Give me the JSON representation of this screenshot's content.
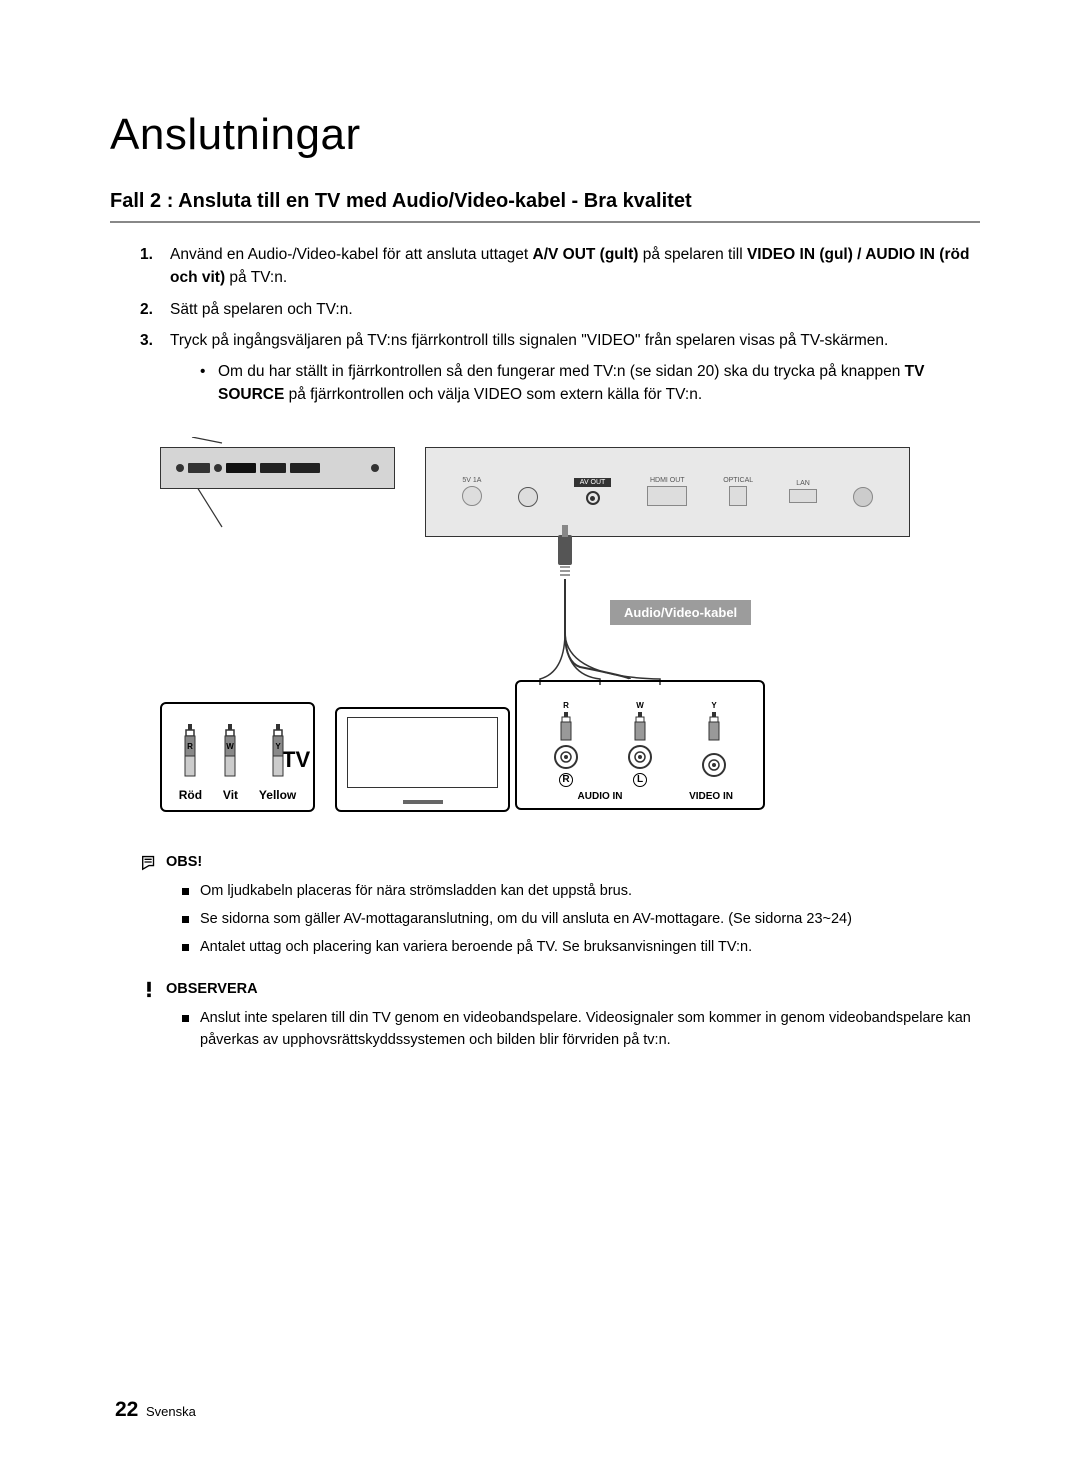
{
  "title": "Anslutningar",
  "subtitle": "Fall 2 : Ansluta till en TV med Audio/Video-kabel - Bra kvalitet",
  "steps": [
    {
      "num": "1.",
      "segments": [
        {
          "t": "Använd en Audio-/Video-kabel för att ansluta uttaget ",
          "b": false
        },
        {
          "t": "A/V OUT (gult)",
          "b": true
        },
        {
          "t": " på spelaren till ",
          "b": false
        },
        {
          "t": "VIDEO IN (gul) / AUDIO IN (röd och vit)",
          "b": true
        },
        {
          "t": " på TV:n.",
          "b": false
        }
      ]
    },
    {
      "num": "2.",
      "segments": [
        {
          "t": "Sätt på spelaren och TV:n.",
          "b": false
        }
      ]
    },
    {
      "num": "3.",
      "segments": [
        {
          "t": "Tryck på ingångsväljaren på TV:ns fjärrkontroll tills signalen \"VIDEO\" från spelaren visas på TV-skärmen.",
          "b": false
        }
      ],
      "sub": [
        {
          "t": "Om du har ställt in fjärrkontrollen så den fungerar med TV:n (se sidan 20) ska du trycka på knappen ",
          "b": false
        },
        {
          "t": "TV SOURCE",
          "b": true
        },
        {
          "t": " på fjärrkontrollen och välja VIDEO som extern källa för TV:n.",
          "b": false
        }
      ]
    }
  ],
  "diagram": {
    "cable_label": "Audio/Video-kabel",
    "tv_label": "TV",
    "legend": [
      {
        "letter": "R",
        "label": "Röd"
      },
      {
        "letter": "W",
        "label": "Vit"
      },
      {
        "letter": "Y",
        "label": "Yellow"
      }
    ],
    "jack_plugs": [
      "R",
      "W",
      "Y"
    ],
    "jack_rl": [
      "R",
      "L"
    ],
    "jack_bottom": {
      "audio": "AUDIO IN",
      "video": "VIDEO IN"
    },
    "large_ports": [
      "5V 1A",
      "",
      "AV OUT",
      "HDMI OUT",
      "OPTICAL",
      "LAN"
    ],
    "colors": {
      "bg": "#ffffff",
      "device_small": "#d5d5d5",
      "device_large": "#e8e8e8",
      "cable_label_bg": "#9c9c9c",
      "cable_label_fg": "#ffffff",
      "border": "#000000"
    }
  },
  "notes": {
    "obs_head": "OBS!",
    "obs_items": [
      "Om ljudkabeln placeras för nära strömsladden kan det uppstå brus.",
      "Se sidorna som gäller AV-mottagaranslutning, om du vill ansluta en AV-mottagare. (Se sidorna 23~24)",
      "Antalet uttag och placering kan variera beroende på TV. Se bruksanvisningen till TV:n."
    ],
    "observera_head": "OBSERVERA",
    "observera_items": [
      "Anslut inte spelaren till din TV genom en videobandspelare. Videosignaler som kommer in genom videobandspelare kan påverkas av upphovsrättskyddssystemen och bilden blir förvriden på tv:n."
    ]
  },
  "footer": {
    "page": "22",
    "lang": "Svenska"
  }
}
